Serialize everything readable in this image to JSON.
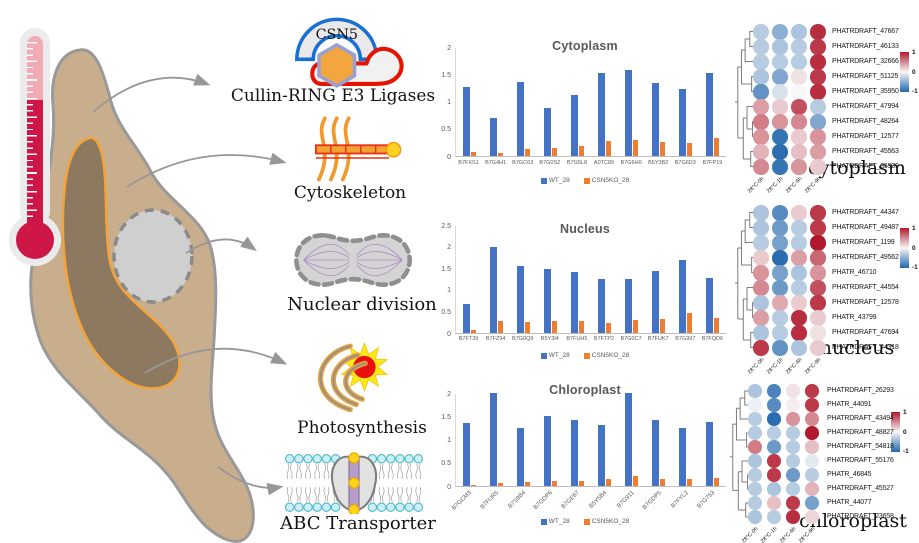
{
  "illustration": {
    "csn5": "CSN5",
    "pathway_labels": {
      "cullin": "Cullin-RING E3 Ligases",
      "cytoskeleton": "Cytoskeleton",
      "nuclear_division": "Nuclear division",
      "photosynthesis": "Photosynthesis",
      "abc_transporter": "ABC Transporter"
    }
  },
  "colors": {
    "wt_bar": "#4472C4",
    "ko_bar": "#ED7D31",
    "heat_red": "#B2182B",
    "heat_blue": "#2166AC"
  },
  "chart_data": [
    {
      "type": "bar",
      "title": "Cytoplasm",
      "ylim": [
        0,
        2
      ],
      "yticks": [
        0,
        0.5,
        1,
        1.5,
        2
      ],
      "categories": [
        "B7FXS1",
        "B7G4H1",
        "B7GC63",
        "B7G0S2",
        "B7G5L8",
        "A0TC89",
        "B7G6H0",
        "B5Y3B2",
        "B7G6D3",
        "B7FP19"
      ],
      "series": [
        {
          "name": "WT_28",
          "color": "#4472C4",
          "values": [
            1.27,
            0.7,
            1.35,
            0.88,
            1.12,
            1.52,
            1.57,
            1.34,
            1.23,
            1.53
          ]
        },
        {
          "name": "CSN5KO_28",
          "color": "#ED7D31",
          "values": [
            0.07,
            0.05,
            0.13,
            0.14,
            0.19,
            0.27,
            0.29,
            0.25,
            0.23,
            0.33
          ]
        }
      ],
      "rotate_xlabels": false,
      "legend_position": "bottom"
    },
    {
      "type": "bar",
      "title": "Nucleus",
      "ylim": [
        0,
        2.5
      ],
      "yticks": [
        0,
        0.5,
        1,
        1.5,
        2,
        2.5
      ],
      "categories": [
        "B7FT39",
        "B7FZ94",
        "B7G0Q9",
        "B5Y3I4",
        "B7FUH5",
        "B7FTP2",
        "B7G0C7",
        "B7FUK7",
        "B7G997",
        "B7FQD6"
      ],
      "series": [
        {
          "name": "WT_28",
          "color": "#4472C4",
          "values": [
            0.67,
            1.99,
            1.55,
            1.47,
            1.42,
            1.24,
            1.25,
            1.44,
            1.7,
            1.28
          ]
        },
        {
          "name": "CSN5KO_28",
          "color": "#ED7D31",
          "values": [
            0.07,
            0.27,
            0.26,
            0.28,
            0.28,
            0.24,
            0.29,
            0.33,
            0.46,
            0.35
          ]
        }
      ],
      "rotate_xlabels": false,
      "legend_position": "bottom"
    },
    {
      "type": "bar",
      "title": "Chloroplast",
      "ylim": [
        0,
        2
      ],
      "yticks": [
        0,
        0.5,
        1,
        1.5,
        2
      ],
      "categories": [
        "B7GCM3",
        "B7FUR5",
        "B7S9B4",
        "B7GDP6",
        "B7GE67",
        "B5Y5B4",
        "B7G911",
        "B7GDP5",
        "B7FYL2",
        "B7G753"
      ],
      "series": [
        {
          "name": "WT_28",
          "color": "#4472C4",
          "values": [
            1.35,
            2.0,
            1.24,
            1.5,
            1.43,
            1.32,
            2.0,
            1.43,
            1.24,
            1.37
          ]
        },
        {
          "name": "CSN5KO_28",
          "color": "#ED7D31",
          "values": [
            0.03,
            0.07,
            0.08,
            0.1,
            0.11,
            0.14,
            0.21,
            0.16,
            0.16,
            0.17
          ]
        }
      ],
      "rotate_xlabels": true,
      "legend_position": "bottom"
    },
    {
      "type": "heatmap",
      "title": "cytoplasm",
      "columns": [
        "28°C-0h",
        "28°C-1h",
        "28°C-6h",
        "28°C-9h"
      ],
      "rows": [
        "PHATRDRAFT_47667",
        "PHATRDRAFT_46133",
        "PHATRDRAFT_32666",
        "PHATRDRAFT_51125",
        "PHATRDRAFT_35950",
        "PHATRDRAFT_47994",
        "PHATRDRAFT_48264",
        "PHATRDRAFT_12577",
        "PHATRDRAFT_45563",
        "PHATRDRAFT_35939"
      ],
      "values": [
        [
          -0.3,
          -0.5,
          -0.35,
          0.9
        ],
        [
          -0.3,
          -0.35,
          -0.3,
          0.85
        ],
        [
          -0.3,
          -0.3,
          -0.3,
          0.9
        ],
        [
          -0.35,
          -0.55,
          0.1,
          0.85
        ],
        [
          -0.7,
          -0.15,
          0.0,
          0.9
        ],
        [
          0.4,
          0.2,
          0.75,
          -0.3
        ],
        [
          0.55,
          0.45,
          0.5,
          -0.55
        ],
        [
          0.45,
          -0.9,
          0.2,
          0.45
        ],
        [
          0.3,
          -0.95,
          0.25,
          0.4
        ],
        [
          0.5,
          -0.9,
          0.45,
          0.2
        ]
      ],
      "colorbar_ticks": [
        "1",
        "0",
        "-1"
      ]
    },
    {
      "type": "heatmap",
      "title": "nucleus",
      "columns": [
        "28°C-0h",
        "28°C-1h",
        "28°C-6h",
        "28°C-9h"
      ],
      "rows": [
        "PHATRDRAFT_44347",
        "PHATRDRAFT_49487",
        "PHATRDRAFT_1199",
        "PHATRDRAFT_49562",
        "PHATR_46710",
        "PHATRDRAFT_44554",
        "PHATRDRAFT_12578",
        "PHATR_43799",
        "PHATRDRAFT_47694",
        "PHATRDRAFT_44318"
      ],
      "values": [
        [
          -0.35,
          -0.75,
          0.2,
          0.85
        ],
        [
          -0.35,
          -0.65,
          -0.3,
          0.85
        ],
        [
          -0.3,
          -0.6,
          -0.3,
          1.0
        ],
        [
          0.2,
          -0.95,
          0.4,
          0.65
        ],
        [
          0.45,
          -0.6,
          -0.35,
          0.45
        ],
        [
          0.5,
          -0.65,
          -0.3,
          0.75
        ],
        [
          -0.35,
          0.35,
          0.2,
          0.85
        ],
        [
          0.4,
          -0.3,
          0.9,
          0.2
        ],
        [
          -0.35,
          -0.3,
          0.9,
          0.1
        ],
        [
          0.85,
          -0.7,
          -0.35,
          0.2
        ]
      ],
      "colorbar_ticks": [
        "1",
        "0",
        "-1"
      ]
    },
    {
      "type": "heatmap",
      "title": "chloroplast",
      "columns": [
        "28°C-0h",
        "28°C-1h",
        "28°C-6h",
        "28°C-9h"
      ],
      "rows": [
        "PHATRDRAFT_26293",
        "PHATR_44091",
        "PHATRDRAFT_43494",
        "PHATRDRAFT_48827",
        "PHATRDRAFT_54818",
        "PHATRDRAFT_55176",
        "PHATR_46845",
        "PHATRDRAFT_45527",
        "PHATR_44077",
        "PHATRDRAFT_23658"
      ],
      "values": [
        [
          -0.35,
          -0.8,
          0.1,
          0.85
        ],
        [
          -0.05,
          -0.75,
          0.05,
          0.85
        ],
        [
          -0.3,
          -0.95,
          0.45,
          0.5
        ],
        [
          -0.3,
          -0.3,
          -0.3,
          1.0
        ],
        [
          0.55,
          -0.65,
          -0.3,
          0.25
        ],
        [
          -0.35,
          0.85,
          -0.3,
          -0.1
        ],
        [
          -0.3,
          0.85,
          -0.65,
          -0.3
        ],
        [
          -0.3,
          -0.35,
          -0.3,
          0.3
        ],
        [
          -0.3,
          0.25,
          0.85,
          -0.6
        ],
        [
          -0.35,
          -0.3,
          0.9,
          0.15
        ]
      ],
      "colorbar_ticks": [
        "1",
        "0",
        "-1"
      ]
    }
  ]
}
